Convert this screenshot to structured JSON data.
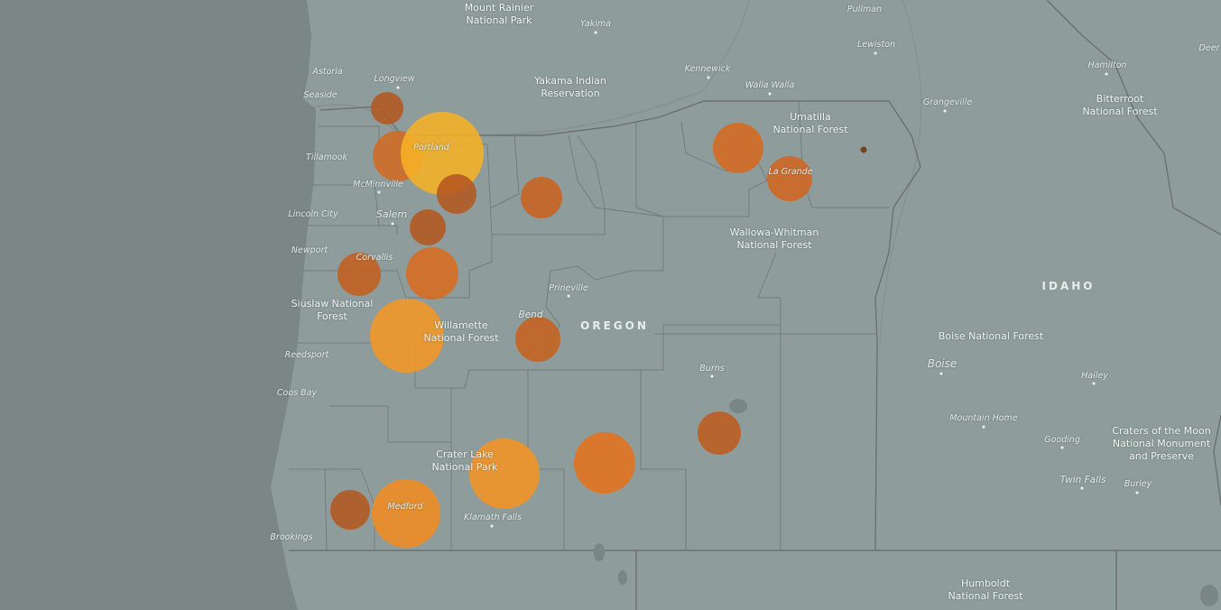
{
  "map": {
    "state_label": "OREGON",
    "idaho_label": "IDAHO",
    "colors": {
      "ocean": "#7c8787",
      "land": "#8f9c9c",
      "border": "#6f7373",
      "bubble_small": "#b5581d",
      "bubble_mid": "#e2741f",
      "bubble_large": "#f59a22",
      "bubble_max": "#f6b127"
    },
    "region_labels": [
      {
        "id": "mount-rainier",
        "text": "Mount Rainier\nNational Park"
      },
      {
        "id": "yakama",
        "text": "Yakama Indian\nReservation"
      },
      {
        "id": "umatilla",
        "text": "Umatilla\nNational Forest"
      },
      {
        "id": "bitterroot",
        "text": "Bitterroot\nNational Forest"
      },
      {
        "id": "wallowa",
        "text": "Wallowa-Whitman\nNational Forest"
      },
      {
        "id": "siuslaw",
        "text": "Siuslaw National\nForest"
      },
      {
        "id": "willamette",
        "text": "Willamette\nNational Forest"
      },
      {
        "id": "boise-nf",
        "text": "Boise National Forest"
      },
      {
        "id": "crater-lake",
        "text": "Crater Lake\nNational Park"
      },
      {
        "id": "craters-moon",
        "text": "Craters of the Moon\nNational Monument\nand Preserve"
      },
      {
        "id": "humboldt",
        "text": "Humboldt\nNational Forest"
      }
    ],
    "cities": [
      {
        "id": "yakima",
        "text": "Yakima"
      },
      {
        "id": "pullman",
        "text": "Pullman"
      },
      {
        "id": "lewiston",
        "text": "Lewiston"
      },
      {
        "id": "deer",
        "text": "Deer"
      },
      {
        "id": "astoria",
        "text": "Astoria"
      },
      {
        "id": "seaside",
        "text": "Seaside"
      },
      {
        "id": "longview",
        "text": "Longview"
      },
      {
        "id": "kennewick",
        "text": "Kennewick"
      },
      {
        "id": "walla-walla",
        "text": "Walla Walla"
      },
      {
        "id": "hamilton",
        "text": "Hamilton"
      },
      {
        "id": "grangeville",
        "text": "Grangeville"
      },
      {
        "id": "tillamook",
        "text": "Tillamook"
      },
      {
        "id": "portland",
        "text": "Portland"
      },
      {
        "id": "mcminnville",
        "text": "McMinnville"
      },
      {
        "id": "salem",
        "text": "Salem"
      },
      {
        "id": "lincoln-city",
        "text": "Lincoln City"
      },
      {
        "id": "la-grande",
        "text": "La Grande"
      },
      {
        "id": "newport",
        "text": "Newport"
      },
      {
        "id": "corvallis",
        "text": "Corvallis"
      },
      {
        "id": "prineville",
        "text": "Prineville"
      },
      {
        "id": "bend",
        "text": "Bend"
      },
      {
        "id": "reedsport",
        "text": "Reedsport"
      },
      {
        "id": "burns",
        "text": "Burns"
      },
      {
        "id": "boise",
        "text": "Boise"
      },
      {
        "id": "hailey",
        "text": "Hailey"
      },
      {
        "id": "coos-bay",
        "text": "Coos Bay"
      },
      {
        "id": "mountain-home",
        "text": "Mountain Home"
      },
      {
        "id": "gooding",
        "text": "Gooding"
      },
      {
        "id": "twin-falls",
        "text": "Twin Falls"
      },
      {
        "id": "burley",
        "text": "Burley"
      },
      {
        "id": "medford",
        "text": "Medford"
      },
      {
        "id": "klamath-falls",
        "text": "Klamath Falls"
      },
      {
        "id": "brookings",
        "text": "Brookings"
      }
    ]
  }
}
